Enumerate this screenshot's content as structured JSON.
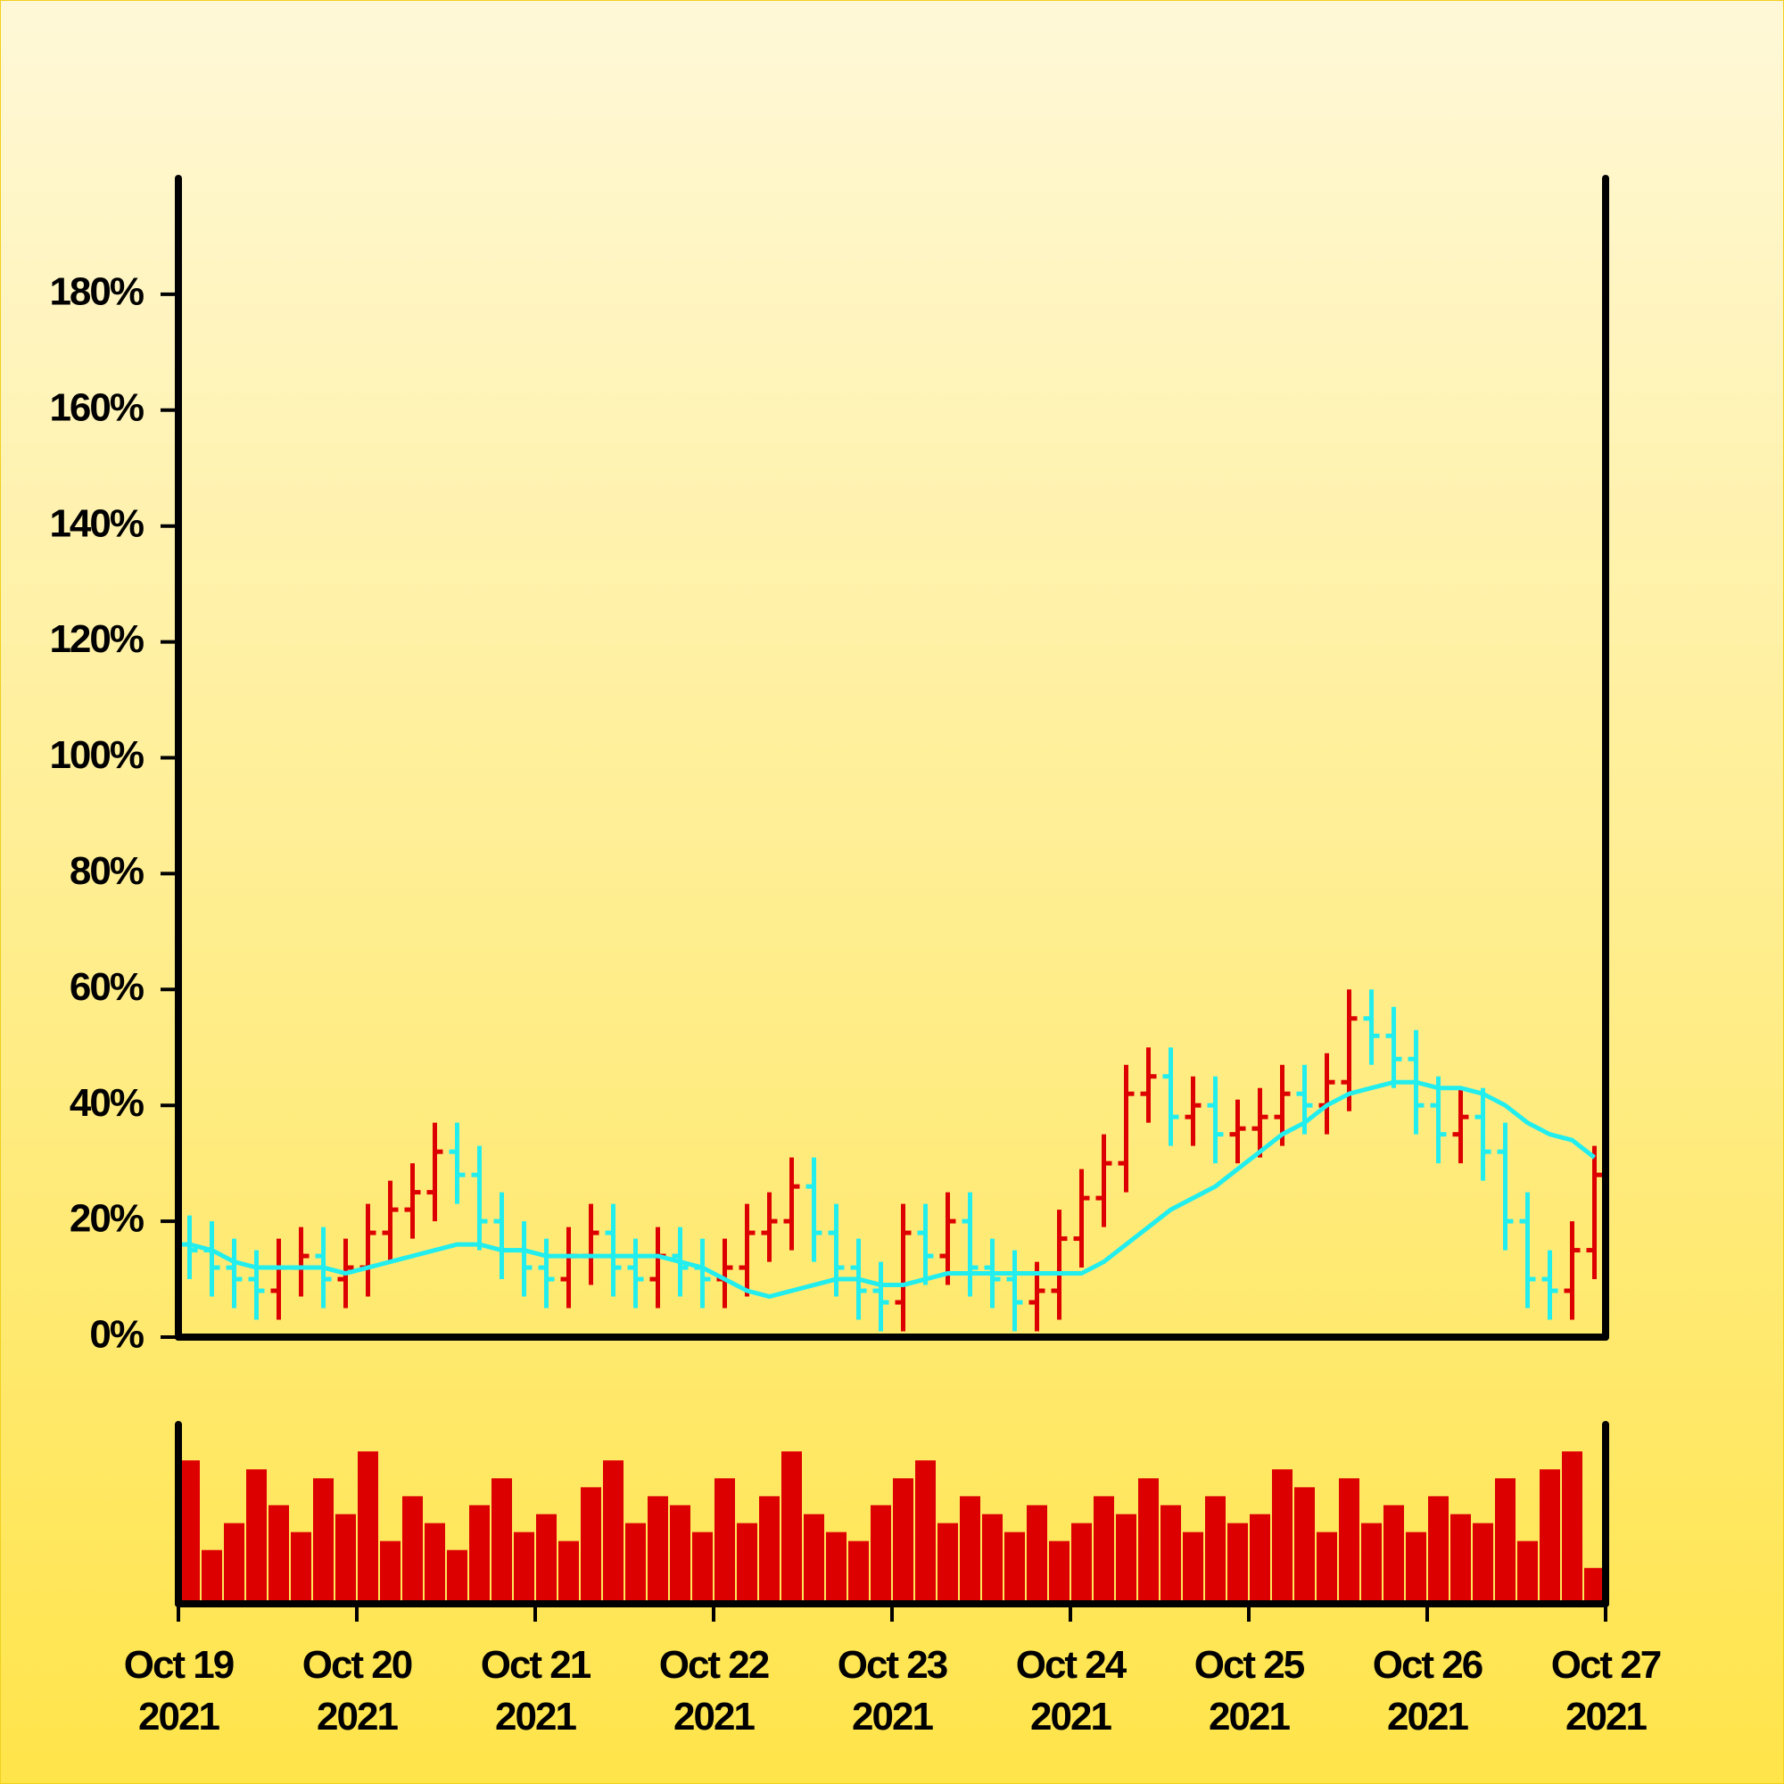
{
  "chart_data": {
    "type": "ohlc",
    "x": [
      "2021-10-19T00:00",
      "2021-10-19T03:00",
      "2021-10-19T06:00",
      "2021-10-19T09:00",
      "2021-10-19T12:00",
      "2021-10-19T15:00",
      "2021-10-19T18:00",
      "2021-10-19T21:00",
      "2021-10-20T00:00",
      "2021-10-20T03:00",
      "2021-10-20T06:00",
      "2021-10-20T09:00",
      "2021-10-20T12:00",
      "2021-10-20T15:00",
      "2021-10-20T18:00",
      "2021-10-20T21:00",
      "2021-10-21T00:00",
      "2021-10-21T03:00",
      "2021-10-21T06:00",
      "2021-10-21T09:00",
      "2021-10-21T12:00",
      "2021-10-21T15:00",
      "2021-10-21T18:00",
      "2021-10-21T21:00",
      "2021-10-22T00:00",
      "2021-10-22T03:00",
      "2021-10-22T06:00",
      "2021-10-22T09:00",
      "2021-10-22T12:00",
      "2021-10-22T15:00",
      "2021-10-22T18:00",
      "2021-10-22T21:00",
      "2021-10-23T00:00",
      "2021-10-23T03:00",
      "2021-10-23T06:00",
      "2021-10-23T09:00",
      "2021-10-23T12:00",
      "2021-10-23T15:00",
      "2021-10-23T18:00",
      "2021-10-23T21:00",
      "2021-10-24T00:00",
      "2021-10-24T03:00",
      "2021-10-24T06:00",
      "2021-10-24T09:00",
      "2021-10-24T12:00",
      "2021-10-24T15:00",
      "2021-10-24T18:00",
      "2021-10-24T21:00",
      "2021-10-25T00:00",
      "2021-10-25T03:00",
      "2021-10-25T06:00",
      "2021-10-25T09:00",
      "2021-10-25T12:00",
      "2021-10-25T15:00",
      "2021-10-25T18:00",
      "2021-10-25T21:00",
      "2021-10-26T00:00",
      "2021-10-26T03:00",
      "2021-10-26T06:00",
      "2021-10-26T09:00",
      "2021-10-26T12:00",
      "2021-10-26T15:00",
      "2021-10-26T18:00",
      "2021-10-26T21:00"
    ],
    "open": [
      16,
      15,
      12,
      10,
      8,
      12,
      14,
      10,
      12,
      18,
      22,
      25,
      32,
      28,
      20,
      15,
      12,
      10,
      14,
      18,
      12,
      10,
      14,
      12,
      10,
      12,
      18,
      20,
      26,
      18,
      12,
      8,
      6,
      18,
      14,
      20,
      12,
      10,
      6,
      8,
      17,
      24,
      30,
      42,
      45,
      38,
      40,
      35,
      36,
      38,
      42,
      40,
      44,
      55,
      52,
      48,
      40,
      35,
      38,
      32,
      20,
      10,
      8,
      15
    ],
    "high": [
      21,
      20,
      17,
      15,
      17,
      19,
      19,
      17,
      23,
      27,
      30,
      37,
      37,
      33,
      25,
      20,
      17,
      19,
      23,
      23,
      17,
      19,
      19,
      17,
      17,
      23,
      25,
      31,
      31,
      23,
      17,
      13,
      23,
      23,
      25,
      25,
      17,
      15,
      13,
      22,
      29,
      35,
      47,
      50,
      50,
      45,
      45,
      41,
      43,
      47,
      47,
      49,
      60,
      60,
      57,
      53,
      45,
      43,
      43,
      37,
      25,
      15,
      20,
      33
    ],
    "low": [
      10,
      7,
      5,
      3,
      3,
      7,
      5,
      5,
      7,
      13,
      17,
      20,
      23,
      15,
      10,
      7,
      5,
      5,
      9,
      7,
      5,
      5,
      7,
      5,
      5,
      7,
      13,
      15,
      13,
      7,
      3,
      1,
      1,
      9,
      9,
      7,
      5,
      1,
      1,
      3,
      12,
      19,
      25,
      37,
      33,
      33,
      30,
      30,
      31,
      33,
      35,
      35,
      39,
      47,
      43,
      35,
      30,
      30,
      27,
      15,
      5,
      3,
      3,
      10
    ],
    "close": [
      15,
      12,
      10,
      8,
      12,
      14,
      10,
      12,
      18,
      22,
      25,
      32,
      28,
      20,
      15,
      12,
      10,
      14,
      18,
      12,
      10,
      14,
      12,
      10,
      12,
      18,
      20,
      26,
      18,
      12,
      8,
      6,
      18,
      14,
      20,
      12,
      10,
      6,
      8,
      17,
      24,
      30,
      42,
      45,
      38,
      40,
      35,
      36,
      38,
      42,
      40,
      44,
      55,
      52,
      48,
      40,
      35,
      38,
      32,
      20,
      10,
      8,
      15,
      28
    ],
    "volume": [
      80,
      30,
      45,
      75,
      55,
      40,
      70,
      50,
      85,
      35,
      60,
      45,
      30,
      55,
      70,
      40,
      50,
      35,
      65,
      80,
      45,
      60,
      55,
      40,
      70,
      45,
      60,
      85,
      50,
      40,
      35,
      55,
      70,
      80,
      45,
      60,
      50,
      40,
      55,
      35,
      45,
      60,
      50,
      70,
      55,
      40,
      60,
      45,
      50,
      75,
      65,
      40,
      70,
      45,
      55,
      40,
      60,
      50,
      45,
      70,
      35,
      75,
      85,
      20
    ],
    "ma": {
      "color": "#22eeee",
      "values": [
        16,
        15,
        13,
        12,
        12,
        12,
        12,
        11,
        12,
        13,
        14,
        15,
        16,
        16,
        15,
        15,
        14,
        14,
        14,
        14,
        14,
        14,
        13,
        12,
        10,
        8,
        7,
        8,
        9,
        10,
        10,
        9,
        9,
        10,
        11,
        11,
        11,
        11,
        11,
        11,
        11,
        13,
        16,
        19,
        22,
        24,
        26,
        29,
        32,
        35,
        37,
        40,
        42,
        43,
        44,
        44,
        43,
        43,
        42,
        40,
        37,
        35,
        34,
        31
      ]
    },
    "up_color": "#dd0000",
    "down_color": "#22eeee",
    "volume_color": "#dd0000",
    "ylim": [
      0,
      200
    ],
    "yticks": [
      {
        "value": 0,
        "label": "0%"
      },
      {
        "value": 20,
        "label": "20%"
      },
      {
        "value": 40,
        "label": "40%"
      },
      {
        "value": 60,
        "label": "60%"
      },
      {
        "value": 80,
        "label": "80%"
      },
      {
        "value": 100,
        "label": "100%"
      },
      {
        "value": 120,
        "label": "120%"
      },
      {
        "value": 140,
        "label": "140%"
      },
      {
        "value": 160,
        "label": "160%"
      },
      {
        "value": 180,
        "label": "180%"
      }
    ],
    "volume_ylim": [
      0,
      100
    ],
    "xlim": [
      "2021-10-19T00:00",
      "2021-10-27T00:00"
    ],
    "xticks": [
      {
        "value": "2021-10-19T00:00",
        "label": "Oct 19\n2021"
      },
      {
        "value": "2021-10-20T00:00",
        "label": "Oct 20\n2021"
      },
      {
        "value": "2021-10-21T00:00",
        "label": "Oct 21\n2021"
      },
      {
        "value": "2021-10-22T00:00",
        "label": "Oct 22\n2021"
      },
      {
        "value": "2021-10-23T00:00",
        "label": "Oct 23\n2021"
      },
      {
        "value": "2021-10-24T00:00",
        "label": "Oct 24\n2021"
      },
      {
        "value": "2021-10-25T00:00",
        "label": "Oct 25\n2021"
      },
      {
        "value": "2021-10-26T00:00",
        "label": "Oct 26\n2021"
      },
      {
        "value": "2021-10-27T00:00",
        "label": "Oct 27\n2021"
      }
    ]
  }
}
